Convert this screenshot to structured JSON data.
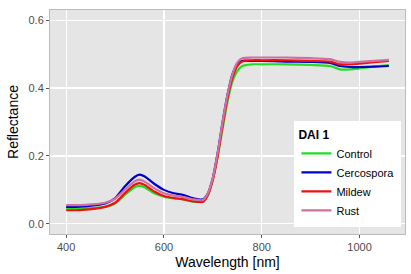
{
  "chart_data": {
    "type": "line",
    "x_label": "Wavelength [nm]",
    "y_label": "Reflectance",
    "legend_title": "DAI 1",
    "legend": "bottom right",
    "grid": true,
    "xlim": [
      367,
      1093
    ],
    "xticks": [
      400,
      600,
      800,
      1000
    ],
    "ylim": [
      -0.03,
      0.63
    ],
    "yticks": [
      {
        "value": 0,
        "label": "0.0"
      },
      0.2,
      0.4,
      0.6
    ],
    "x": [
      400,
      420,
      440,
      460,
      480,
      500,
      520,
      540,
      550,
      560,
      580,
      600,
      620,
      640,
      660,
      680,
      690,
      700,
      710,
      720,
      730,
      740,
      750,
      760,
      780,
      800,
      850,
      900,
      940,
      960,
      980,
      1000,
      1030,
      1060
    ],
    "series": [
      {
        "name": "Control",
        "color": "#22dd22",
        "values": [
          0.045,
          0.045,
          0.046,
          0.047,
          0.05,
          0.06,
          0.085,
          0.108,
          0.112,
          0.108,
          0.09,
          0.08,
          0.075,
          0.072,
          0.065,
          0.065,
          0.085,
          0.13,
          0.2,
          0.28,
          0.36,
          0.42,
          0.45,
          0.465,
          0.47,
          0.47,
          0.47,
          0.468,
          0.465,
          0.455,
          0.455,
          0.458,
          0.463,
          0.468
        ]
      },
      {
        "name": "Cercospora",
        "color": "#0000cc",
        "values": [
          0.05,
          0.05,
          0.052,
          0.055,
          0.06,
          0.075,
          0.11,
          0.138,
          0.145,
          0.14,
          0.118,
          0.1,
          0.09,
          0.085,
          0.075,
          0.072,
          0.09,
          0.135,
          0.21,
          0.3,
          0.38,
          0.44,
          0.47,
          0.48,
          0.48,
          0.48,
          0.478,
          0.477,
          0.474,
          0.465,
          0.462,
          0.462,
          0.463,
          0.465
        ]
      },
      {
        "name": "Mildew",
        "color": "#ee1111",
        "values": [
          0.04,
          0.04,
          0.042,
          0.045,
          0.05,
          0.062,
          0.09,
          0.115,
          0.12,
          0.115,
          0.095,
          0.082,
          0.076,
          0.072,
          0.066,
          0.065,
          0.085,
          0.13,
          0.2,
          0.29,
          0.37,
          0.43,
          0.465,
          0.478,
          0.482,
          0.482,
          0.482,
          0.48,
          0.478,
          0.47,
          0.47,
          0.472,
          0.476,
          0.48
        ]
      },
      {
        "name": "Rust",
        "color": "#d070a0",
        "values": [
          0.055,
          0.055,
          0.056,
          0.058,
          0.062,
          0.074,
          0.1,
          0.125,
          0.13,
          0.125,
          0.105,
          0.09,
          0.083,
          0.079,
          0.072,
          0.07,
          0.09,
          0.135,
          0.21,
          0.3,
          0.38,
          0.44,
          0.475,
          0.488,
          0.49,
          0.49,
          0.49,
          0.488,
          0.485,
          0.477,
          0.475,
          0.477,
          0.48,
          0.483
        ]
      }
    ]
  }
}
